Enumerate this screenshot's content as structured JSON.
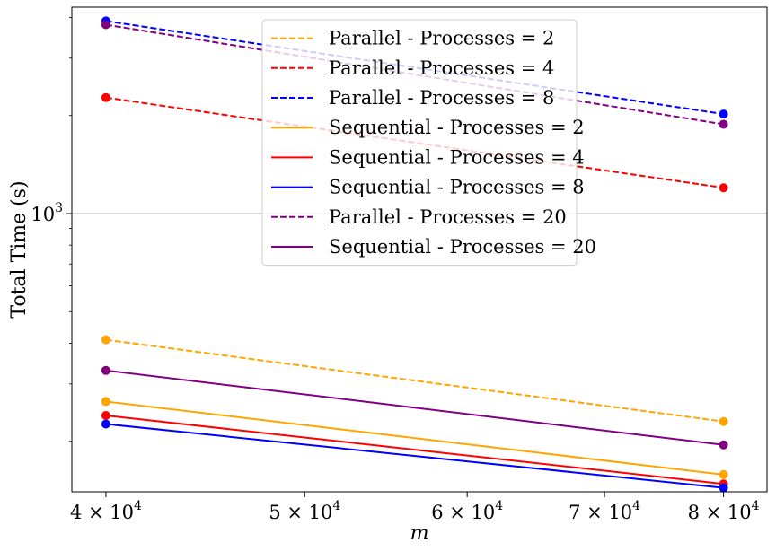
{
  "chart_data": {
    "type": "line",
    "title": "",
    "xlabel": "m",
    "ylabel": "Total Time (s)",
    "x_scale": "log",
    "y_scale": "log",
    "xlim": [
      38500,
      84000
    ],
    "ylim": [
      140,
      4300
    ],
    "x": [
      40000,
      80000
    ],
    "x_ticks": [
      {
        "value": 40000,
        "mantissa": "4",
        "exp": "4"
      },
      {
        "value": 50000,
        "mantissa": "5",
        "exp": "4"
      },
      {
        "value": 60000,
        "mantissa": "6",
        "exp": "4"
      },
      {
        "value": 70000,
        "mantissa": "7",
        "exp": "4"
      },
      {
        "value": 80000,
        "mantissa": "8",
        "exp": "4"
      }
    ],
    "y_ticks": [
      {
        "value": 1000,
        "base": "10",
        "exp": "3"
      }
    ],
    "grid": true,
    "legend_position": "top-center",
    "series": [
      {
        "name": "Parallel - Processes = 2",
        "style": "dashed",
        "color": "#FFA500",
        "values": [
          410,
          230
        ]
      },
      {
        "name": "Parallel - Processes = 4",
        "style": "dashed",
        "color": "#FF0000",
        "values": [
          2270,
          1200
        ]
      },
      {
        "name": "Parallel - Processes = 8",
        "style": "dashed",
        "color": "#0000FF",
        "values": [
          3900,
          2020
        ]
      },
      {
        "name": "Sequential - Processes = 2",
        "style": "solid",
        "color": "#FFA500",
        "values": [
          265,
          158
        ]
      },
      {
        "name": "Sequential - Processes = 4",
        "style": "solid",
        "color": "#FF0000",
        "values": [
          240,
          148
        ]
      },
      {
        "name": "Sequential - Processes = 8",
        "style": "solid",
        "color": "#0000FF",
        "values": [
          226,
          144
        ]
      },
      {
        "name": "Parallel - Processes = 20",
        "style": "dashed",
        "color": "#800080",
        "values": [
          3800,
          1880
        ]
      },
      {
        "name": "Sequential - Processes = 20",
        "style": "solid",
        "color": "#800080",
        "values": [
          330,
          195
        ]
      }
    ]
  }
}
